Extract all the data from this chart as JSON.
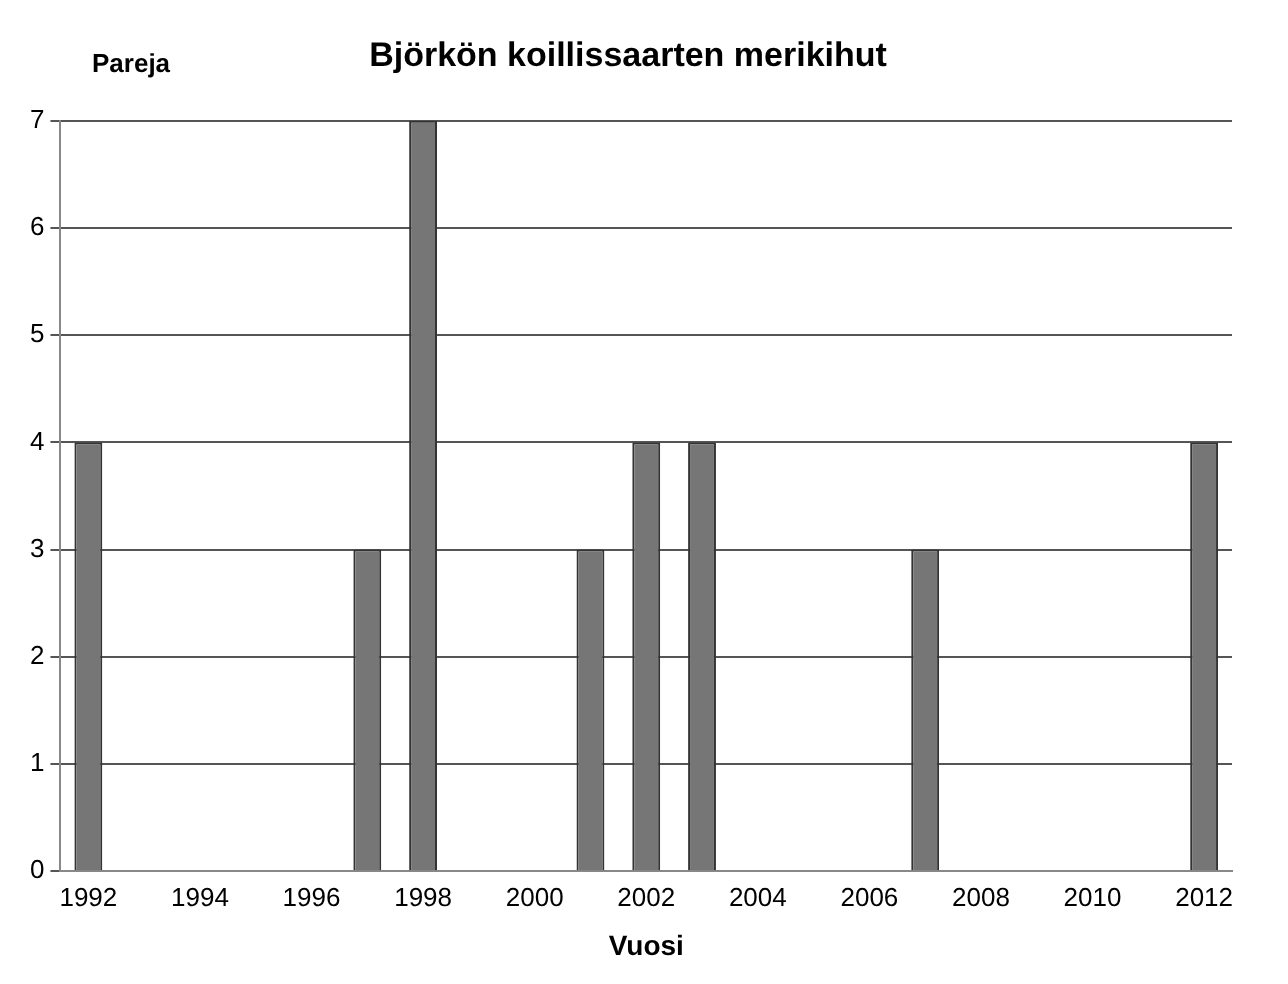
{
  "chart_data": {
    "type": "bar",
    "title": "Björkön koillissaarten merikihut",
    "xlabel": "Vuosi",
    "ylabel": "Pareja",
    "categories": [
      "1992",
      null,
      "1994",
      null,
      "1996",
      null,
      "1998",
      null,
      "2000",
      null,
      "2002",
      null,
      "2004",
      null,
      "2006",
      null,
      "2008",
      null,
      "2010",
      null,
      "2012"
    ],
    "values": [
      4,
      0,
      0,
      0,
      0,
      3,
      7,
      0,
      0,
      3,
      4,
      4,
      0,
      0,
      0,
      3,
      0,
      0,
      0,
      0,
      4
    ],
    "color": "#767676",
    "ylim": [
      0,
      7
    ],
    "yticks": [
      0,
      1,
      2,
      3,
      4,
      5,
      6,
      7
    ],
    "grid": "y",
    "legend": false
  }
}
